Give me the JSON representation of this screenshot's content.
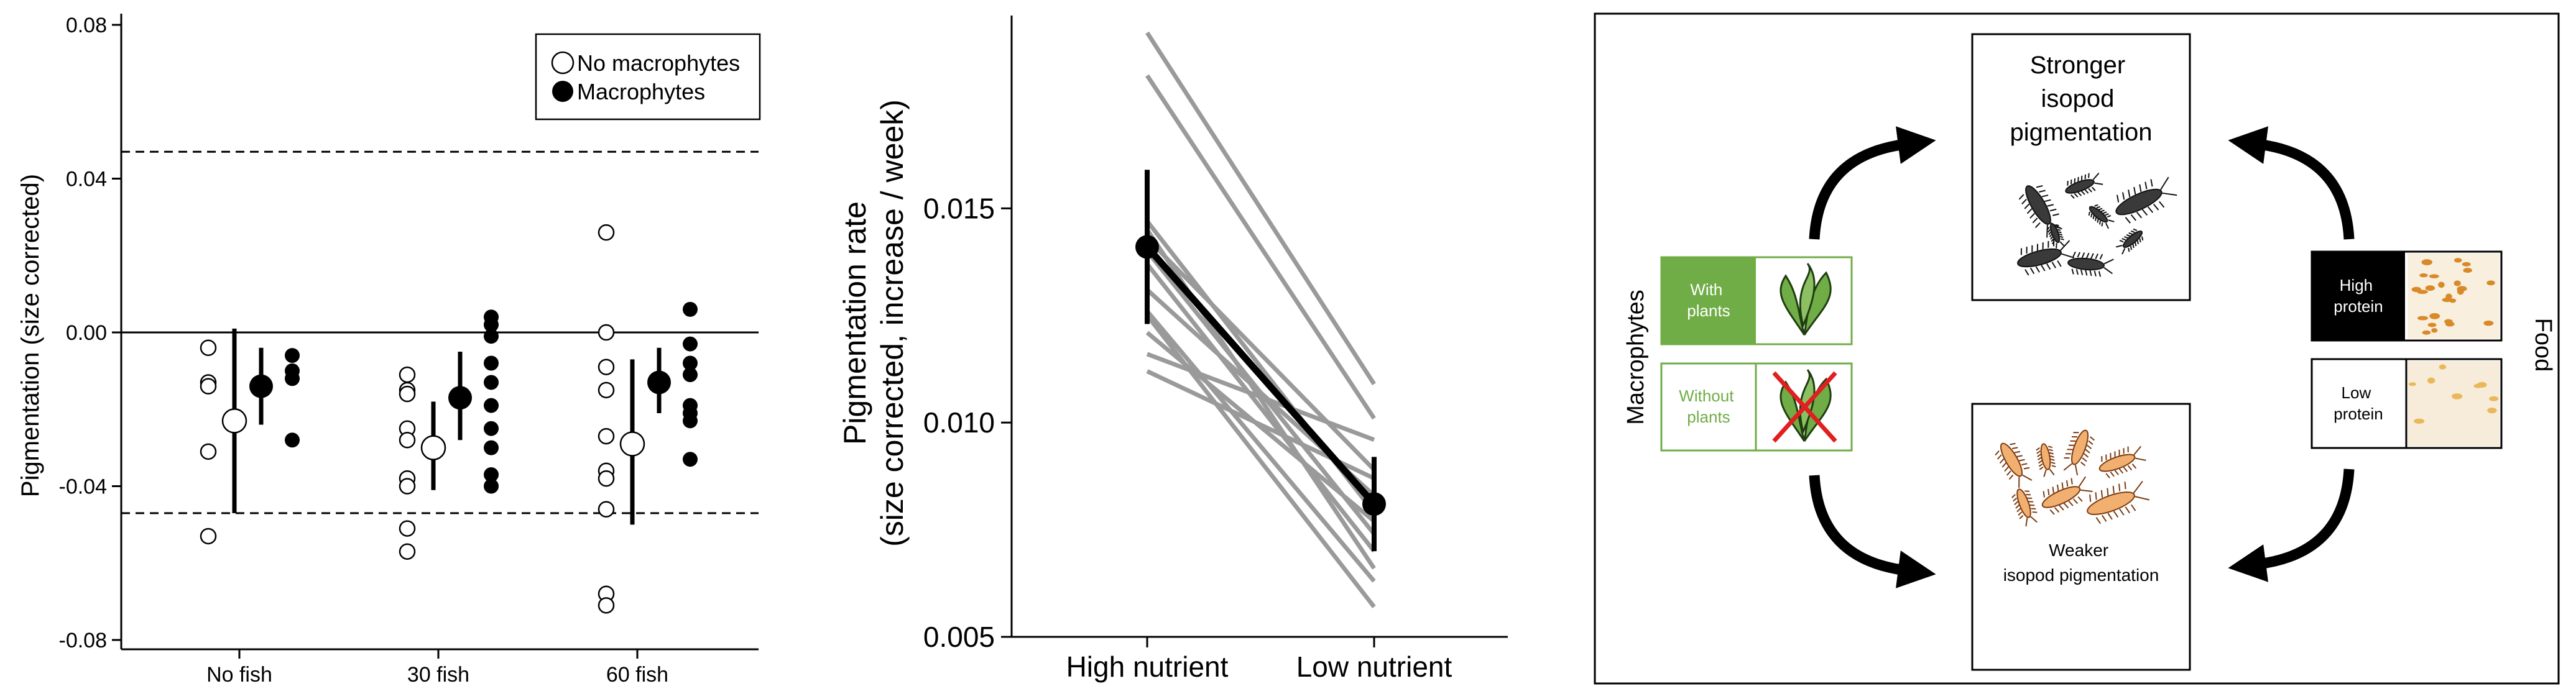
{
  "chart_data": [
    {
      "type": "scatter",
      "ylabel": "Pigmentation (size corrected)",
      "ylim": [
        -0.08,
        0.08
      ],
      "yticks": [
        "-0.08",
        "-0.04",
        "0.00",
        "0.04",
        "0.08"
      ],
      "ytick_values": [
        -0.08,
        -0.04,
        0.0,
        0.04,
        0.08
      ],
      "categories": [
        "No fish",
        "30 fish",
        "60 fish"
      ],
      "reference_lines": [
        0.0
      ],
      "dashed_lines": [
        0.047,
        -0.047
      ],
      "legend": {
        "placement": "top-right",
        "entries": [
          "No macrophytes",
          "Macrophytes"
        ]
      },
      "series": [
        {
          "name": "No macrophytes",
          "fill": "#ffffff",
          "means": [
            -0.023,
            -0.03,
            -0.029
          ],
          "ci": [
            [
              -0.047,
              0.001
            ],
            [
              -0.041,
              -0.018
            ],
            [
              -0.05,
              -0.007
            ]
          ],
          "points": [
            [
              -0.004,
              -0.013,
              -0.014,
              -0.031,
              -0.053
            ],
            [
              -0.011,
              -0.015,
              -0.016,
              -0.025,
              -0.028,
              -0.038,
              -0.04,
              -0.051,
              -0.057
            ],
            [
              0.026,
              0.0,
              -0.009,
              -0.015,
              -0.027,
              -0.036,
              -0.038,
              -0.046,
              -0.068,
              -0.071
            ]
          ]
        },
        {
          "name": "Macrophytes",
          "fill": "#000000",
          "means": [
            -0.014,
            -0.017,
            -0.013
          ],
          "ci": [
            [
              -0.024,
              -0.004
            ],
            [
              -0.028,
              -0.005
            ],
            [
              -0.021,
              -0.004
            ]
          ],
          "points": [
            [
              -0.006,
              -0.01,
              -0.012,
              -0.028
            ],
            [
              0.004,
              0.002,
              -0.001,
              -0.008,
              -0.013,
              -0.019,
              -0.025,
              -0.03,
              -0.037,
              -0.04
            ],
            [
              0.006,
              -0.003,
              -0.008,
              -0.011,
              -0.019,
              -0.021,
              -0.023,
              -0.033
            ]
          ]
        }
      ]
    },
    {
      "type": "line",
      "ylabel": "Pigmentation rate",
      "ylabel_line2": "(size corrected, increase / week)",
      "ylim": [
        0.005,
        0.0195
      ],
      "yticks": [
        "0.005",
        "0.010",
        "0.015"
      ],
      "ytick_values": [
        0.005,
        0.01,
        0.015
      ],
      "categories": [
        "High nutrient",
        "Low nutrient"
      ],
      "individual_series": [
        [
          0.0191,
          0.0109
        ],
        [
          0.0181,
          0.0101
        ],
        [
          0.0147,
          0.0079
        ],
        [
          0.0145,
          0.0066
        ],
        [
          0.0143,
          0.0089
        ],
        [
          0.014,
          0.0074
        ],
        [
          0.0137,
          0.007
        ],
        [
          0.0131,
          0.0083
        ],
        [
          0.0126,
          0.0063
        ],
        [
          0.0125,
          0.0057
        ],
        [
          0.0121,
          0.0077
        ],
        [
          0.0116,
          0.0096
        ],
        [
          0.0112,
          0.0087
        ]
      ],
      "mean_series": [
        0.0141,
        0.0081
      ],
      "mean_ci": [
        [
          0.0123,
          0.0159
        ],
        [
          0.007,
          0.0092
        ]
      ]
    }
  ],
  "diagram": {
    "center_top_label": "Stronger isopod pigmentation",
    "center_top_lines": [
      "Stronger",
      "isopod",
      "pigmentation"
    ],
    "center_bottom_lines": [
      "Weaker",
      "isopod pigmentation"
    ],
    "left_axis_label": "Macrophytes",
    "right_axis_label": "Food",
    "left_boxes": [
      {
        "lines": [
          "With",
          "plants"
        ],
        "fill": "#70ad47"
      },
      {
        "lines": [
          "Without",
          "plants"
        ],
        "fill": "#ffffff"
      }
    ],
    "right_boxes": [
      {
        "lines": [
          "High",
          "protein"
        ],
        "fill": "#000000"
      },
      {
        "lines": [
          "Low",
          "protein"
        ],
        "fill": "#ffffff"
      }
    ],
    "plant_green": "#70ad47",
    "cross_red": "#e02020"
  }
}
